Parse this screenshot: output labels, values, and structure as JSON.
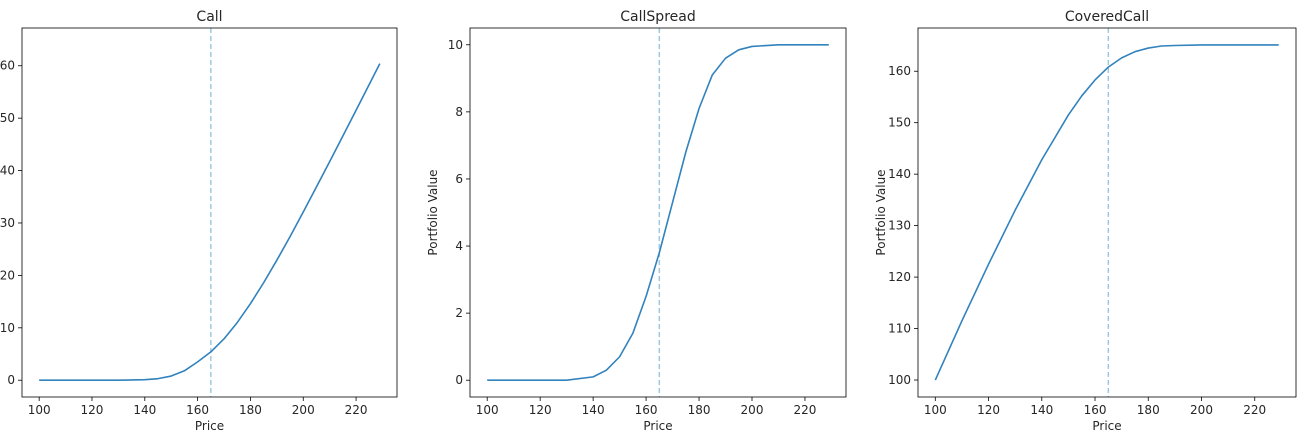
{
  "chart_data": [
    {
      "type": "line",
      "title": "Call",
      "xlabel": "Price",
      "ylabel": "",
      "xlim": [
        93.5,
        235.5
      ],
      "ylim": [
        -3.2,
        67.2
      ],
      "xticks": [
        100,
        120,
        140,
        160,
        180,
        200,
        220
      ],
      "yticks": [
        0,
        10,
        20,
        30,
        40,
        50,
        60
      ],
      "ytick_labels": [
        "0",
        "10",
        "20",
        "30",
        "40",
        "50",
        "60"
      ],
      "vline": {
        "x": 165,
        "style": "dashed",
        "color": "#9ecae1"
      },
      "grid": false,
      "series": [
        {
          "color": "#3182bd",
          "x": [
            100,
            110,
            120,
            130,
            140,
            145,
            150,
            155,
            160,
            165,
            170,
            175,
            180,
            185,
            190,
            195,
            200,
            205,
            210,
            215,
            220,
            229
          ],
          "y": [
            0,
            0,
            0,
            0,
            0.1,
            0.3,
            0.8,
            1.8,
            3.5,
            5.4,
            7.9,
            11,
            14.6,
            18.6,
            22.9,
            27.4,
            32.1,
            36.9,
            41.7,
            46.6,
            51.5,
            60.4
          ]
        }
      ]
    },
    {
      "type": "line",
      "title": "CallSpread",
      "xlabel": "Price",
      "ylabel": "Portfolio Value",
      "xlim": [
        93.5,
        235.5
      ],
      "ylim": [
        -0.5,
        10.5
      ],
      "xticks": [
        100,
        120,
        140,
        160,
        180,
        200,
        220
      ],
      "yticks": [
        0,
        2,
        4,
        6,
        8,
        10
      ],
      "ytick_labels": [
        "0",
        "2",
        "4",
        "6",
        "8",
        "10"
      ],
      "vline": {
        "x": 165,
        "style": "dashed",
        "color": "#9ecae1"
      },
      "grid": false,
      "series": [
        {
          "color": "#3182bd",
          "x": [
            100,
            110,
            120,
            130,
            140,
            145,
            150,
            155,
            160,
            165,
            170,
            175,
            180,
            185,
            190,
            195,
            200,
            210,
            220,
            229
          ],
          "y": [
            0,
            0,
            0,
            0,
            0.1,
            0.3,
            0.7,
            1.4,
            2.5,
            3.8,
            5.3,
            6.8,
            8.1,
            9.1,
            9.6,
            9.85,
            9.95,
            10,
            10,
            10
          ]
        }
      ]
    },
    {
      "type": "line",
      "title": "CoveredCall",
      "xlabel": "Price",
      "ylabel": "Portfolio Value",
      "xlim": [
        93.5,
        235.5
      ],
      "ylim": [
        96.7,
        168.4
      ],
      "xticks": [
        100,
        120,
        140,
        160,
        180,
        200,
        220
      ],
      "yticks": [
        100,
        110,
        120,
        130,
        140,
        150,
        160
      ],
      "ytick_labels": [
        "100",
        "110",
        "120",
        "130",
        "140",
        "150",
        "160"
      ],
      "vline": {
        "x": 165,
        "style": "dashed",
        "color": "#9ecae1"
      },
      "grid": false,
      "series": [
        {
          "color": "#3182bd",
          "x": [
            100,
            110,
            120,
            130,
            140,
            150,
            155,
            160,
            165,
            170,
            175,
            180,
            185,
            190,
            200,
            210,
            220,
            229
          ],
          "y": [
            100,
            111.5,
            122.5,
            133,
            142.8,
            151.5,
            155.2,
            158.3,
            160.8,
            162.6,
            163.8,
            164.5,
            164.9,
            165.0,
            165.1,
            165.1,
            165.1,
            165.1
          ]
        }
      ]
    }
  ]
}
